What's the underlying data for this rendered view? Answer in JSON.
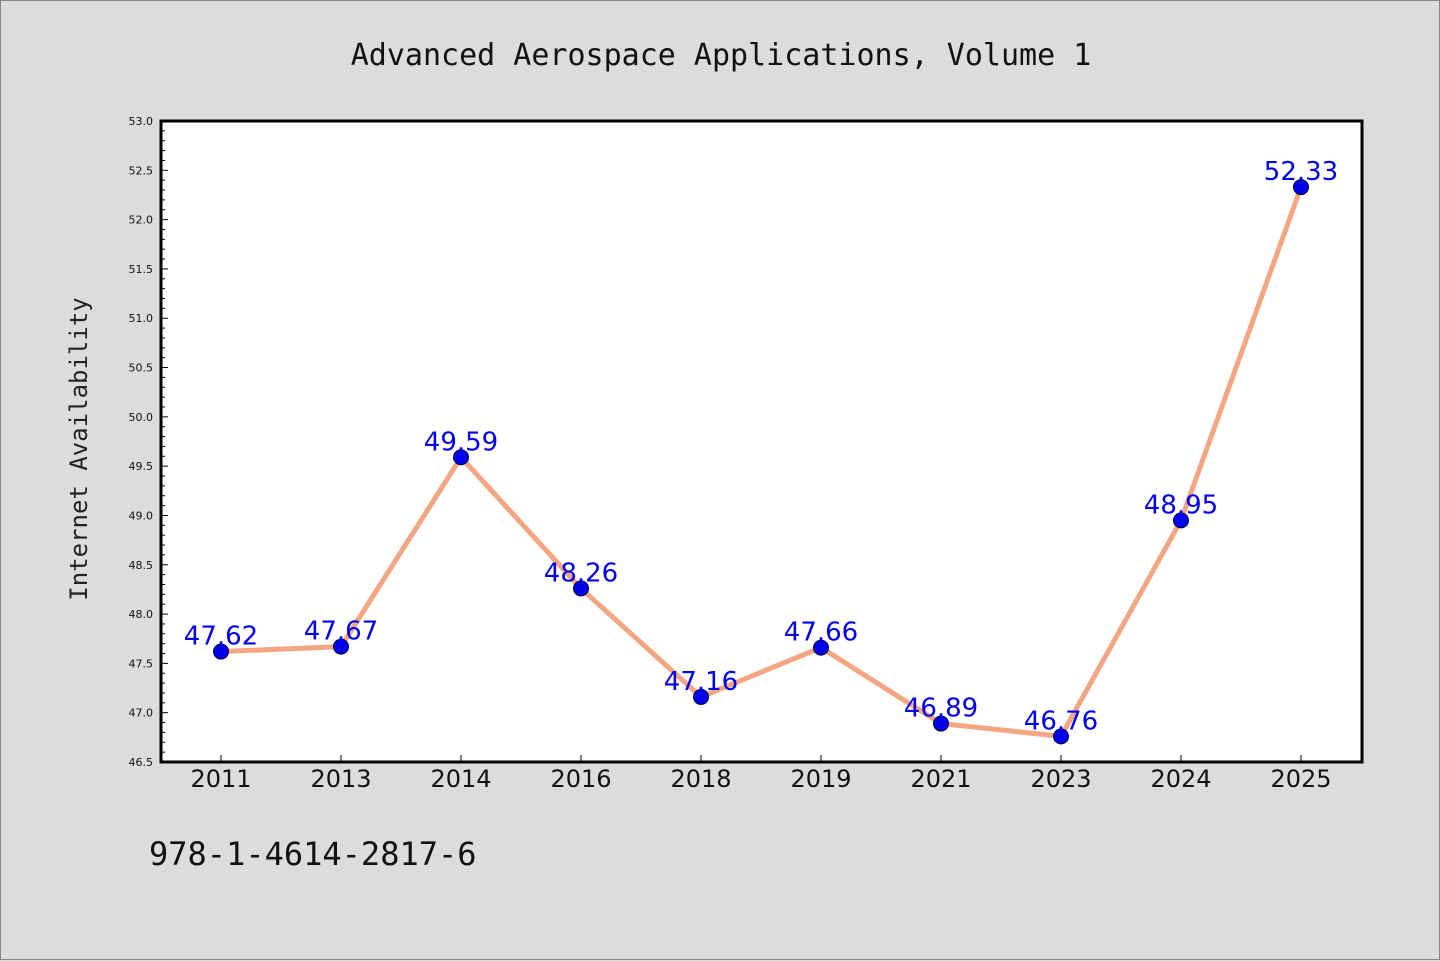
{
  "chart_data": {
    "type": "line",
    "title": "Advanced Aerospace Applications, Volume 1",
    "ylabel": "Internet Availability",
    "xlabel": "",
    "categories": [
      "2011",
      "2013",
      "2014",
      "2016",
      "2018",
      "2019",
      "2021",
      "2023",
      "2024",
      "2025"
    ],
    "series": [
      {
        "values": [
          47.62,
          47.67,
          49.59,
          48.26,
          47.16,
          47.66,
          46.89,
          46.76,
          48.95,
          52.33
        ]
      }
    ],
    "data_labels": [
      "47.62",
      "47.67",
      "49.59",
      "48.26",
      "47.16",
      "47.66",
      "46.89",
      "46.76",
      "48.95",
      "52.33"
    ],
    "ylim": [
      46.5,
      53.0
    ],
    "yticks": [
      "46.5",
      "47.0",
      "47.5",
      "48.0",
      "48.5",
      "49.0",
      "49.5",
      "50.0",
      "50.5",
      "51.0",
      "51.5",
      "52.0",
      "52.5",
      "53.0"
    ],
    "grid": false,
    "legend": "none",
    "colors": {
      "line": "#f4a582",
      "marker": "#0000ee",
      "label": "#0000ee",
      "background": "#dcdcdc",
      "plot_background": "#ffffff"
    }
  },
  "footer": {
    "isbn": "978-1-4614-2817-6"
  }
}
